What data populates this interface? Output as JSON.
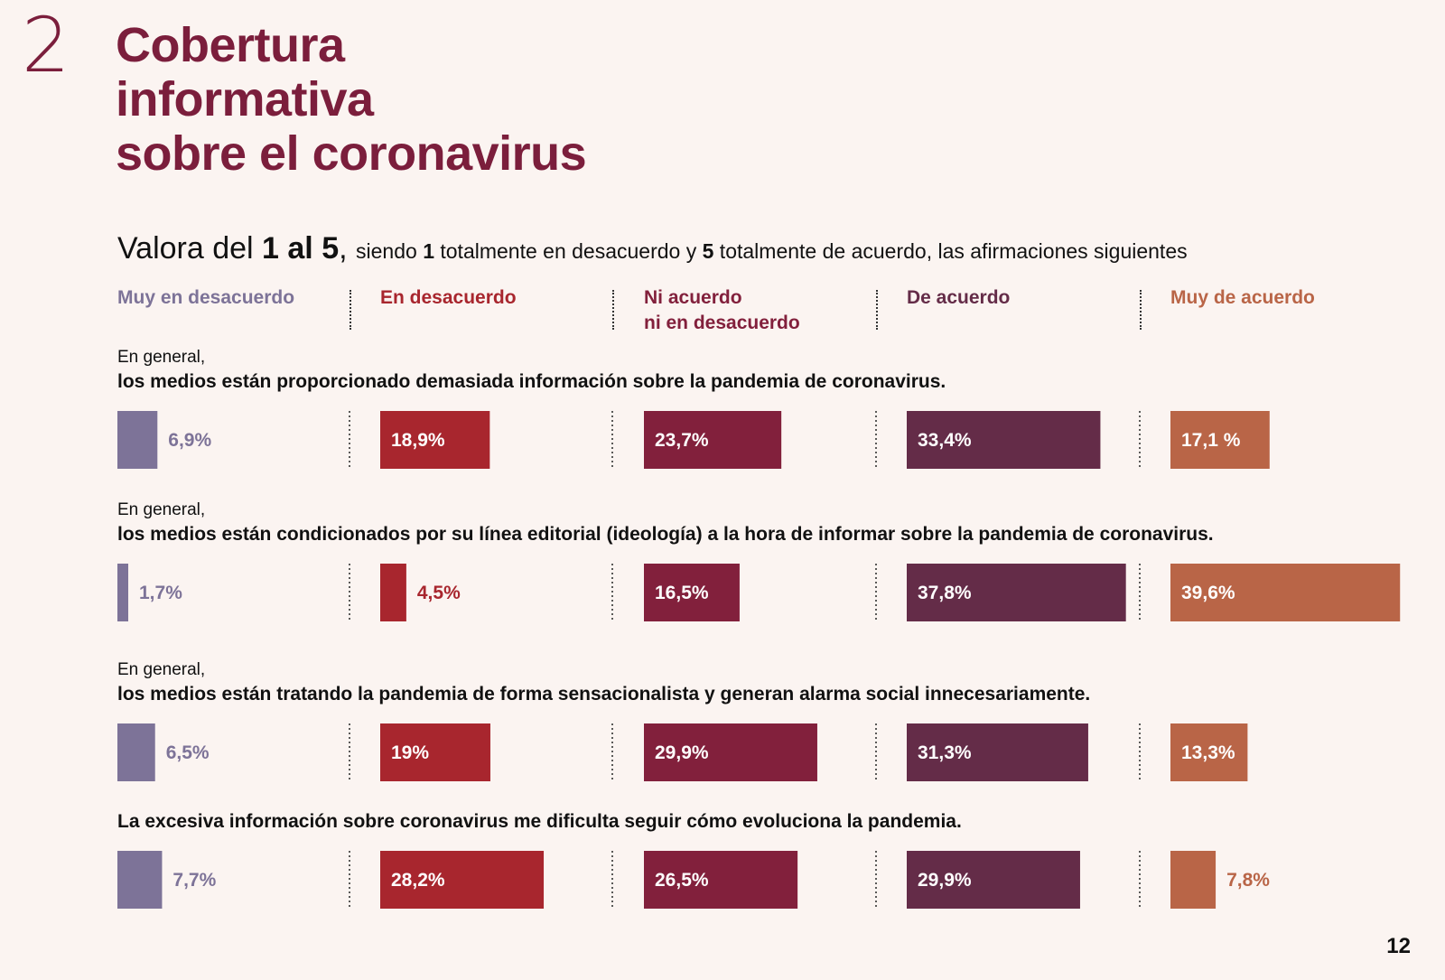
{
  "section": {
    "number": "2",
    "title_lines": [
      "Cobertura",
      "informativa",
      "sobre el coronavirus"
    ]
  },
  "intro": {
    "lead": "Valora del ",
    "lead_bold": "1 al 5",
    "comma": ", ",
    "part1": "siendo ",
    "one": "1",
    "part2": " totalmente en desacuerdo y ",
    "five": "5",
    "part3": " totalmente de acuerdo, las afirmaciones siguientes"
  },
  "colors": {
    "muy_desacuerdo": "#7d7398",
    "desacuerdo": "#a8262e",
    "ni_ni": "#82203c",
    "acuerdo": "#642c48",
    "muy_acuerdo": "#b96547",
    "title": "#7b1e3c",
    "background": "#fbf4f1"
  },
  "page_number": "12",
  "chart_data": {
    "type": "bar",
    "categories": [
      "Muy en desacuerdo",
      "En desacuerdo",
      "Ni acuerdo ni en desacuerdo",
      "De acuerdo",
      "Muy de acuerdo"
    ],
    "category_label_lines": [
      [
        "Muy en desacuerdo"
      ],
      [
        "En desacuerdo"
      ],
      [
        "Ni acuerdo",
        "ni en desacuerdo"
      ],
      [
        "De acuerdo"
      ],
      [
        "Muy de acuerdo"
      ]
    ],
    "series": [
      {
        "intro": "En general,",
        "name": "los medios están proporcionado demasiada información sobre la pandemia de coronavirus.",
        "values": [
          6.9,
          18.9,
          23.7,
          33.4,
          17.1
        ],
        "labels": [
          "6,9%",
          "18,9%",
          "23,7%",
          "33,4%",
          "17,1 %"
        ]
      },
      {
        "intro": "En general,",
        "name": "los medios están condicionados por su línea editorial (ideología) a la hora de informar sobre la pandemia de coronavirus.",
        "values": [
          1.7,
          4.5,
          16.5,
          37.8,
          39.6
        ],
        "labels": [
          "1,7%",
          "4,5%",
          "16,5%",
          "37,8%",
          "39,6%"
        ]
      },
      {
        "intro": "En general,",
        "name": "los medios están tratando la pandemia de forma sensacionalista y generan alarma social innecesariamente.",
        "values": [
          6.5,
          19,
          29.9,
          31.3,
          13.3
        ],
        "labels": [
          "6,5%",
          "19%",
          "29,9%",
          "31,3%",
          "13,3%"
        ]
      },
      {
        "intro": "",
        "name": "La excesiva información sobre coronavirus me dificulta seguir cómo evoluciona la pandemia.",
        "values": [
          7.7,
          28.2,
          26.5,
          29.9,
          7.8
        ],
        "labels": [
          "7,7%",
          "28,2%",
          "26,5%",
          "29,9%",
          "7,8%"
        ]
      }
    ],
    "value_unit": "%"
  }
}
